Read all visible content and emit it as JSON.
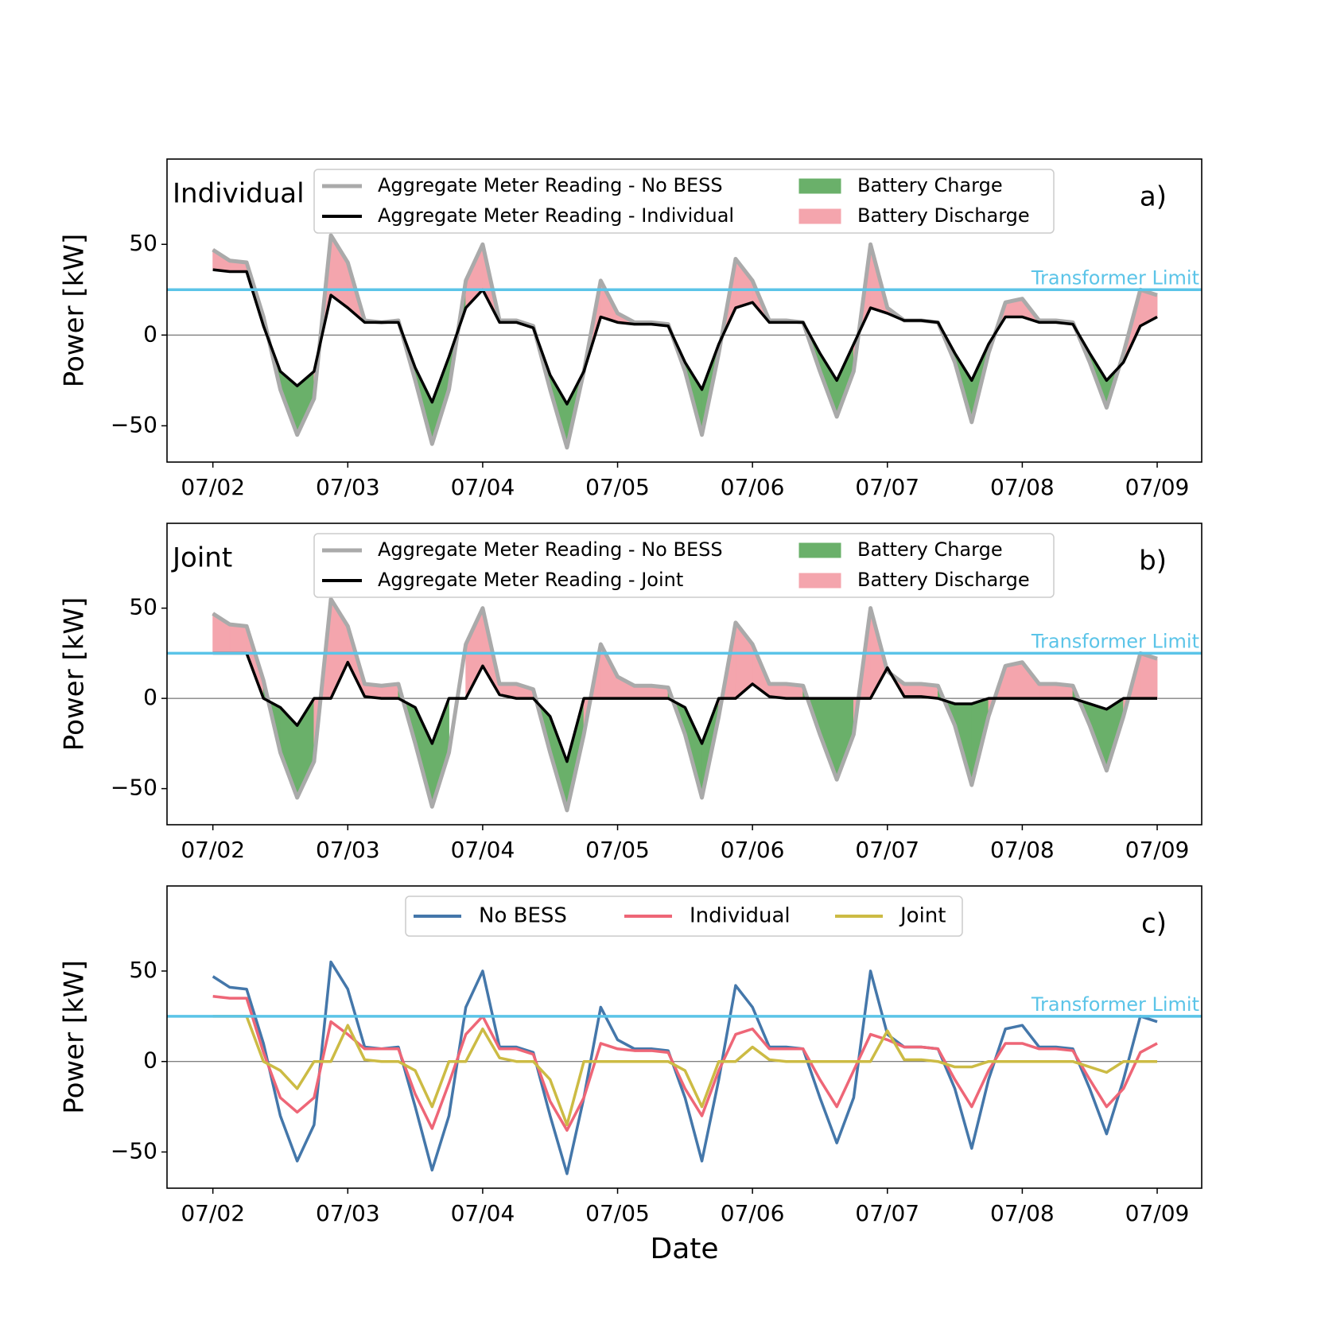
{
  "chart_data": [
    {
      "type": "line",
      "panel_label": "a)",
      "text_label": "Individual",
      "ylabel": "Power [kW]",
      "x": [
        0,
        0.125,
        0.25,
        0.375,
        0.5,
        0.625,
        0.75,
        0.875,
        1,
        1.125,
        1.25,
        1.375,
        1.5,
        1.625,
        1.75,
        1.875,
        2,
        2.125,
        2.25,
        2.375,
        2.5,
        2.625,
        2.75,
        2.875,
        3,
        3.125,
        3.25,
        3.375,
        3.5,
        3.625,
        3.75,
        3.875,
        4,
        4.125,
        4.25,
        4.375,
        4.5,
        4.625,
        4.75,
        4.875,
        5,
        5.125,
        5.25,
        5.375,
        5.5,
        5.625,
        5.75,
        5.875,
        6,
        6.125,
        6.25,
        6.375,
        6.5,
        6.625,
        6.75,
        6.875,
        7
      ],
      "series": [
        {
          "name": "Aggregate Meter Reading - No BESS",
          "color": "#aaaaaa",
          "values": [
            47,
            41,
            40,
            10,
            -30,
            -55,
            -35,
            55,
            40,
            8,
            7,
            8,
            -25,
            -60,
            -30,
            30,
            50,
            8,
            8,
            5,
            -30,
            -62,
            -20,
            30,
            12,
            7,
            7,
            6,
            -20,
            -55,
            -10,
            42,
            30,
            8,
            8,
            7,
            -20,
            -45,
            -20,
            50,
            15,
            8,
            8,
            7,
            -15,
            -48,
            -10,
            18,
            20,
            8,
            8,
            7,
            -15,
            -40,
            -10,
            25,
            22
          ]
        },
        {
          "name": "Aggregate Meter Reading - Individual",
          "color": "#000000",
          "values": [
            36,
            35,
            35,
            5,
            -20,
            -28,
            -20,
            22,
            15,
            7,
            7,
            7,
            -18,
            -37,
            -12,
            15,
            25,
            7,
            7,
            4,
            -22,
            -38,
            -20,
            10,
            7,
            6,
            6,
            5,
            -15,
            -30,
            -5,
            15,
            18,
            7,
            7,
            7,
            -10,
            -25,
            -5,
            15,
            12,
            8,
            8,
            7,
            -10,
            -25,
            -5,
            10,
            10,
            7,
            7,
            6,
            -10,
            -25,
            -15,
            5,
            10
          ]
        }
      ],
      "fills": [
        {
          "name": "Battery Charge",
          "color": "#6ab06a"
        },
        {
          "name": "Battery Discharge",
          "color": "#f4a5ad"
        }
      ],
      "hline": {
        "value": 25,
        "label": "Transformer Limit",
        "color": "#5bc4e8"
      },
      "xlim": [
        -0.34,
        7.33
      ],
      "xticks": [
        {
          "value": 0,
          "label": "07/02"
        },
        {
          "value": 1,
          "label": "07/03"
        },
        {
          "value": 2,
          "label": "07/04"
        },
        {
          "value": 3,
          "label": "07/05"
        },
        {
          "value": 4,
          "label": "07/06"
        },
        {
          "value": 5,
          "label": "07/07"
        },
        {
          "value": 6,
          "label": "07/08"
        },
        {
          "value": 7,
          "label": "07/09"
        }
      ],
      "ylim": [
        -70,
        97
      ],
      "yticks": [
        {
          "value": -50,
          "label": "−50"
        },
        0,
        50
      ]
    },
    {
      "type": "line",
      "panel_label": "b)",
      "text_label": "Joint",
      "ylabel": "Power [kW]",
      "x": [
        0,
        0.125,
        0.25,
        0.375,
        0.5,
        0.625,
        0.75,
        0.875,
        1,
        1.125,
        1.25,
        1.375,
        1.5,
        1.625,
        1.75,
        1.875,
        2,
        2.125,
        2.25,
        2.375,
        2.5,
        2.625,
        2.75,
        2.875,
        3,
        3.125,
        3.25,
        3.375,
        3.5,
        3.625,
        3.75,
        3.875,
        4,
        4.125,
        4.25,
        4.375,
        4.5,
        4.625,
        4.75,
        4.875,
        5,
        5.125,
        5.25,
        5.375,
        5.5,
        5.625,
        5.75,
        5.875,
        6,
        6.125,
        6.25,
        6.375,
        6.5,
        6.625,
        6.75,
        6.875,
        7
      ],
      "series": [
        {
          "name": "Aggregate Meter Reading - No BESS",
          "color": "#aaaaaa",
          "values": [
            47,
            41,
            40,
            10,
            -30,
            -55,
            -35,
            55,
            40,
            8,
            7,
            8,
            -25,
            -60,
            -30,
            30,
            50,
            8,
            8,
            5,
            -30,
            -62,
            -20,
            30,
            12,
            7,
            7,
            6,
            -20,
            -55,
            -10,
            42,
            30,
            8,
            8,
            7,
            -20,
            -45,
            -20,
            50,
            15,
            8,
            8,
            7,
            -15,
            -48,
            -10,
            18,
            20,
            8,
            8,
            7,
            -15,
            -40,
            -10,
            25,
            22
          ]
        },
        {
          "name": "Aggregate Meter Reading - Joint",
          "color": "#000000",
          "values": [
            25,
            25,
            25,
            0,
            -5,
            -15,
            0,
            0,
            20,
            1,
            0,
            0,
            -5,
            -25,
            0,
            0,
            18,
            2,
            0,
            0,
            -10,
            -35,
            0,
            0,
            0,
            0,
            0,
            0,
            -5,
            -25,
            0,
            0,
            8,
            1,
            0,
            0,
            0,
            0,
            0,
            0,
            17,
            1,
            1,
            0,
            -3,
            -3,
            0,
            0,
            0,
            0,
            0,
            0,
            -3,
            -6,
            0,
            0,
            0
          ]
        }
      ],
      "fills": [
        {
          "name": "Battery Charge",
          "color": "#6ab06a"
        },
        {
          "name": "Battery Discharge",
          "color": "#f4a5ad"
        }
      ],
      "hline": {
        "value": 25,
        "label": "Transformer Limit",
        "color": "#5bc4e8"
      },
      "xlim": [
        -0.34,
        7.33
      ],
      "xticks": [
        {
          "value": 0,
          "label": "07/02"
        },
        {
          "value": 1,
          "label": "07/03"
        },
        {
          "value": 2,
          "label": "07/04"
        },
        {
          "value": 3,
          "label": "07/05"
        },
        {
          "value": 4,
          "label": "07/06"
        },
        {
          "value": 5,
          "label": "07/07"
        },
        {
          "value": 6,
          "label": "07/08"
        },
        {
          "value": 7,
          "label": "07/09"
        }
      ],
      "ylim": [
        -70,
        97
      ],
      "yticks": [
        {
          "value": -50,
          "label": "−50"
        },
        0,
        50
      ]
    },
    {
      "type": "line",
      "panel_label": "c)",
      "ylabel": "Power [kW]",
      "xlabel": "Date",
      "x": [
        0,
        0.125,
        0.25,
        0.375,
        0.5,
        0.625,
        0.75,
        0.875,
        1,
        1.125,
        1.25,
        1.375,
        1.5,
        1.625,
        1.75,
        1.875,
        2,
        2.125,
        2.25,
        2.375,
        2.5,
        2.625,
        2.75,
        2.875,
        3,
        3.125,
        3.25,
        3.375,
        3.5,
        3.625,
        3.75,
        3.875,
        4,
        4.125,
        4.25,
        4.375,
        4.5,
        4.625,
        4.75,
        4.875,
        5,
        5.125,
        5.25,
        5.375,
        5.5,
        5.625,
        5.75,
        5.875,
        6,
        6.125,
        6.25,
        6.375,
        6.5,
        6.625,
        6.75,
        6.875,
        7
      ],
      "series": [
        {
          "name": "No BESS",
          "color": "#4477aa",
          "values": [
            47,
            41,
            40,
            10,
            -30,
            -55,
            -35,
            55,
            40,
            8,
            7,
            8,
            -25,
            -60,
            -30,
            30,
            50,
            8,
            8,
            5,
            -30,
            -62,
            -20,
            30,
            12,
            7,
            7,
            6,
            -20,
            -55,
            -10,
            42,
            30,
            8,
            8,
            7,
            -20,
            -45,
            -20,
            50,
            15,
            8,
            8,
            7,
            -15,
            -48,
            -10,
            18,
            20,
            8,
            8,
            7,
            -15,
            -40,
            -10,
            25,
            22
          ]
        },
        {
          "name": "Individual",
          "color": "#ee6677",
          "values": [
            36,
            35,
            35,
            5,
            -20,
            -28,
            -20,
            22,
            15,
            7,
            7,
            7,
            -18,
            -37,
            -12,
            15,
            25,
            7,
            7,
            4,
            -22,
            -38,
            -20,
            10,
            7,
            6,
            6,
            5,
            -15,
            -30,
            -5,
            15,
            18,
            7,
            7,
            7,
            -10,
            -25,
            -5,
            15,
            12,
            8,
            8,
            7,
            -10,
            -25,
            -5,
            10,
            10,
            7,
            7,
            6,
            -10,
            -25,
            -15,
            5,
            10
          ]
        },
        {
          "name": "Joint",
          "color": "#ccbb44",
          "values": [
            25,
            25,
            25,
            0,
            -5,
            -15,
            0,
            0,
            20,
            1,
            0,
            0,
            -5,
            -25,
            0,
            0,
            18,
            2,
            0,
            0,
            -10,
            -35,
            0,
            0,
            0,
            0,
            0,
            0,
            -5,
            -25,
            0,
            0,
            8,
            1,
            0,
            0,
            0,
            0,
            0,
            0,
            17,
            1,
            1,
            0,
            -3,
            -3,
            0,
            0,
            0,
            0,
            0,
            0,
            -3,
            -6,
            0,
            0,
            0
          ]
        }
      ],
      "hline": {
        "value": 25,
        "label": "Transformer Limit",
        "color": "#5bc4e8"
      },
      "xlim": [
        -0.34,
        7.33
      ],
      "xticks": [
        {
          "value": 0,
          "label": "07/02"
        },
        {
          "value": 1,
          "label": "07/03"
        },
        {
          "value": 2,
          "label": "07/04"
        },
        {
          "value": 3,
          "label": "07/05"
        },
        {
          "value": 4,
          "label": "07/06"
        },
        {
          "value": 5,
          "label": "07/07"
        },
        {
          "value": 6,
          "label": "07/08"
        },
        {
          "value": 7,
          "label": "07/09"
        }
      ],
      "ylim": [
        -70,
        97
      ],
      "yticks": [
        {
          "value": -50,
          "label": "−50"
        },
        0,
        50
      ]
    }
  ]
}
